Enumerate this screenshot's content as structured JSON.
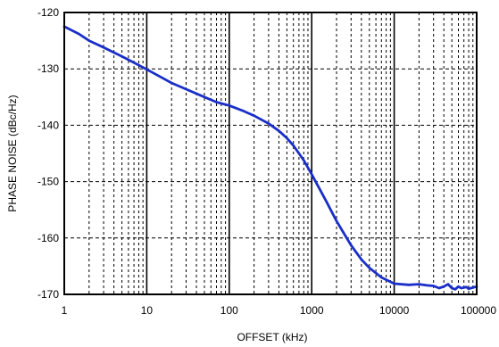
{
  "chart_data": {
    "type": "line",
    "title": "",
    "xlabel": "OFFSET (kHz)",
    "ylabel": "PHASE NOISE (dBc/Hz)",
    "xscale": "log",
    "xlim": [
      1,
      100000
    ],
    "ylim": [
      -170,
      -120
    ],
    "x_ticks": [
      1,
      10,
      100,
      1000,
      10000,
      100000
    ],
    "x_tick_labels": [
      "1",
      "10",
      "100",
      "1000",
      "10000",
      "100000"
    ],
    "y_ticks": [
      -120,
      -130,
      -140,
      -150,
      -160,
      -170
    ],
    "y_tick_labels": [
      "-120",
      "-130",
      "-140",
      "-150",
      "-160",
      "-170"
    ],
    "grid": "major solid, minor dashed",
    "line_color": "#1a2fc8",
    "series": [
      {
        "x": [
          1,
          1.5,
          2,
          3,
          5,
          7,
          10,
          15,
          20,
          30,
          50,
          70,
          100,
          150,
          200,
          300,
          400,
          500,
          600,
          700,
          800,
          1000,
          1500,
          2000,
          3000,
          4000,
          5000,
          7000,
          10000,
          15000,
          20000,
          25000,
          30000,
          35000,
          40000,
          45000,
          50000,
          55000,
          60000,
          65000,
          70000,
          75000,
          80000,
          90000,
          100000
        ],
        "y": [
          -122.5,
          -123.8,
          -125.0,
          -126.2,
          -127.8,
          -128.9,
          -130.1,
          -131.5,
          -132.5,
          -133.6,
          -135.0,
          -135.9,
          -136.5,
          -137.5,
          -138.3,
          -139.7,
          -141.0,
          -142.3,
          -143.6,
          -145.0,
          -146.2,
          -148.7,
          -153.5,
          -157.0,
          -161.3,
          -163.8,
          -165.3,
          -167.0,
          -168.1,
          -168.3,
          -168.2,
          -168.4,
          -168.5,
          -168.9,
          -168.6,
          -168.2,
          -168.9,
          -169.1,
          -168.6,
          -168.9,
          -168.8,
          -168.7,
          -169.0,
          -168.8,
          -168.6
        ]
      }
    ]
  }
}
